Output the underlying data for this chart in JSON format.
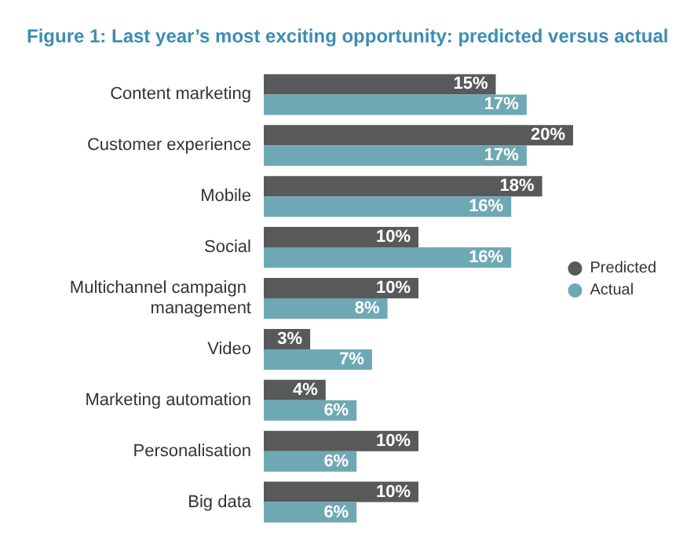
{
  "chart_data": {
    "type": "bar",
    "orientation": "horizontal",
    "title": "Figure 1: Last year’s most exciting opportunity: predicted versus actual",
    "categories": [
      "Content marketing",
      "Customer experience",
      "Mobile",
      "Social",
      "Multichannel campaign management",
      "Video",
      "Marketing automation",
      "Personalisation",
      "Big data"
    ],
    "series": [
      {
        "name": "Predicted",
        "color": "#58595b",
        "values": [
          15,
          20,
          18,
          10,
          10,
          3,
          4,
          10,
          10
        ],
        "value_labels": [
          "15%",
          "20%",
          "18%",
          "10%",
          "10%",
          "3%",
          "4%",
          "10%",
          "10%"
        ]
      },
      {
        "name": "Actual",
        "color": "#6fa8b5",
        "values": [
          17,
          17,
          16,
          16,
          8,
          7,
          6,
          6,
          6
        ],
        "value_labels": [
          "17%",
          "17%",
          "16%",
          "16%",
          "8%",
          "7%",
          "6%",
          "6%",
          "6%"
        ]
      }
    ],
    "legend": "right"
  }
}
